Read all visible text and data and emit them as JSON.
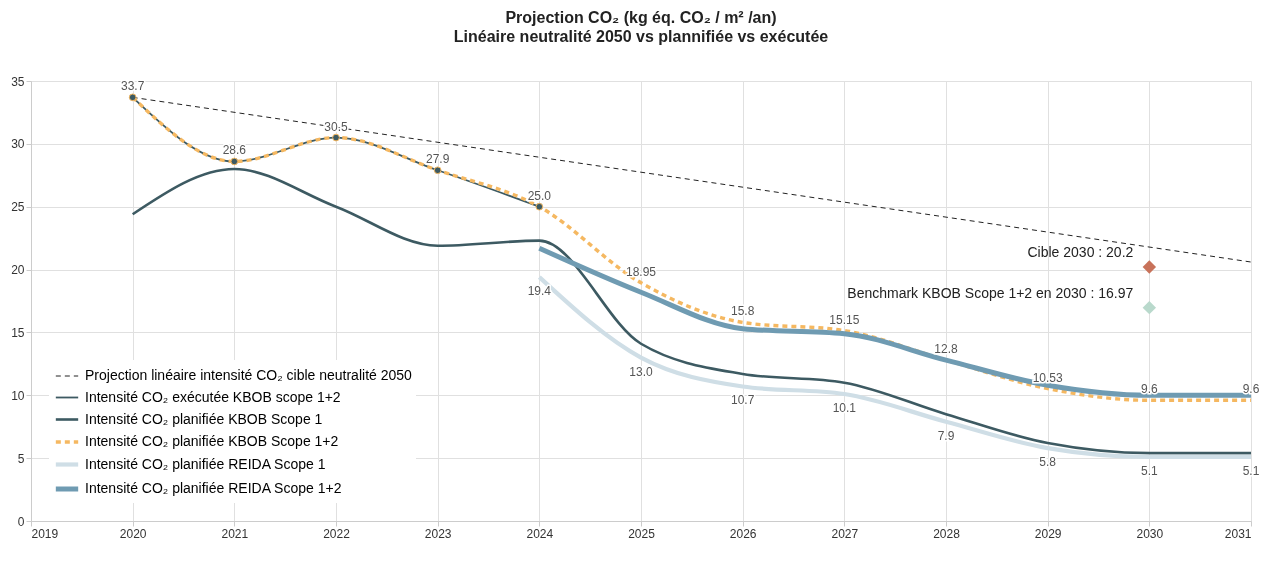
{
  "chart_data": {
    "type": "line",
    "title": "Projection CO₂ (kg éq. CO₂ / m² /an)",
    "subtitle": "Linéaire neutralité 2050 vs plannifiée vs exécutée",
    "xlim": [
      2019,
      2031
    ],
    "xticks": [
      2019,
      2020,
      2021,
      2022,
      2023,
      2024,
      2025,
      2026,
      2027,
      2028,
      2029,
      2030,
      2031
    ],
    "ylim": [
      0,
      35
    ],
    "yticks": [
      0,
      5,
      10,
      15,
      20,
      25,
      30,
      35
    ],
    "grid": true,
    "legend": "bottom left",
    "series": [
      {
        "name": "Projection linéaire intensité CO₂ cible neutralité 2050",
        "color": "#222222",
        "line_style": "dashed",
        "x": [
          2020,
          2031
        ],
        "values": [
          33.7,
          20.6
        ]
      },
      {
        "name": "Intensité CO₂ exécutée KBOB scope 1+2",
        "color": "#3d5a62",
        "line_style": "solid",
        "marker": "circle",
        "x": [
          2020,
          2021,
          2022,
          2023,
          2024
        ],
        "values": [
          33.7,
          28.6,
          30.5,
          27.9,
          25.0
        ],
        "value_labels": [
          "33.7",
          "28.6",
          "30.5",
          "27.9",
          "25.0"
        ]
      },
      {
        "name": "Intensité CO₂ planifiée KBOB Scope 1",
        "color": "#3d5a62",
        "line_style": "solid",
        "x": [
          2020,
          2021,
          2022,
          2023,
          2024,
          2025,
          2026,
          2027,
          2028,
          2029,
          2030,
          2031
        ],
        "values": [
          24.4,
          28.0,
          25.0,
          21.9,
          22.3,
          14.1,
          11.7,
          11.0,
          8.5,
          6.2,
          5.4,
          5.4
        ]
      },
      {
        "name": "Intensité CO₂ planifiée KBOB Scope 1+2",
        "color": "#f5b861",
        "line_style": "dashed",
        "x": [
          2020,
          2021,
          2022,
          2023,
          2024,
          2025,
          2026,
          2027,
          2028,
          2029,
          2030,
          2031
        ],
        "values": [
          33.7,
          28.6,
          30.5,
          27.9,
          25.0,
          18.95,
          15.8,
          15.15,
          12.8,
          10.53,
          9.6,
          9.6
        ],
        "value_labels": [
          null,
          null,
          null,
          null,
          null,
          "18.95",
          "15.8",
          "15.15",
          "12.8",
          "10.53",
          "9.6",
          "9.6"
        ]
      },
      {
        "name": "Intensité CO₂ planifiée REIDA Scope 1",
        "color": "#cfdee6",
        "line_style": "solid",
        "x": [
          2024,
          2025,
          2026,
          2027,
          2028,
          2029,
          2030,
          2031
        ],
        "values": [
          19.4,
          13.0,
          10.7,
          10.1,
          7.9,
          5.8,
          5.1,
          5.1
        ],
        "value_labels": [
          "19.4",
          "13.0",
          "10.7",
          "10.1",
          "7.9",
          "5.8",
          "5.1",
          "5.1"
        ]
      },
      {
        "name": "Intensité CO₂ planifiée REIDA Scope 1+2",
        "color": "#6f9bb2",
        "line_style": "solid",
        "x": [
          2024,
          2025,
          2026,
          2027,
          2028,
          2029,
          2030,
          2031
        ],
        "values": [
          21.7,
          18.2,
          15.3,
          14.9,
          12.8,
          10.8,
          10.0,
          10.0
        ]
      },
      {
        "type": "scatter",
        "color": "#c8725a",
        "marker": "diamond",
        "x": [
          2030
        ],
        "values": [
          20.2
        ]
      },
      {
        "type": "scatter",
        "color": "#b9d9cc",
        "marker": "diamond",
        "x": [
          2030
        ],
        "values": [
          16.97
        ]
      }
    ],
    "annotations": [
      {
        "text": "Cible 2030 : 20.2",
        "x": 2030,
        "y": 20.2
      },
      {
        "text": "Benchmark KBOB Scope 1+2 en 2030 : 16.97",
        "x": 2030,
        "y": 16.97
      }
    ]
  }
}
